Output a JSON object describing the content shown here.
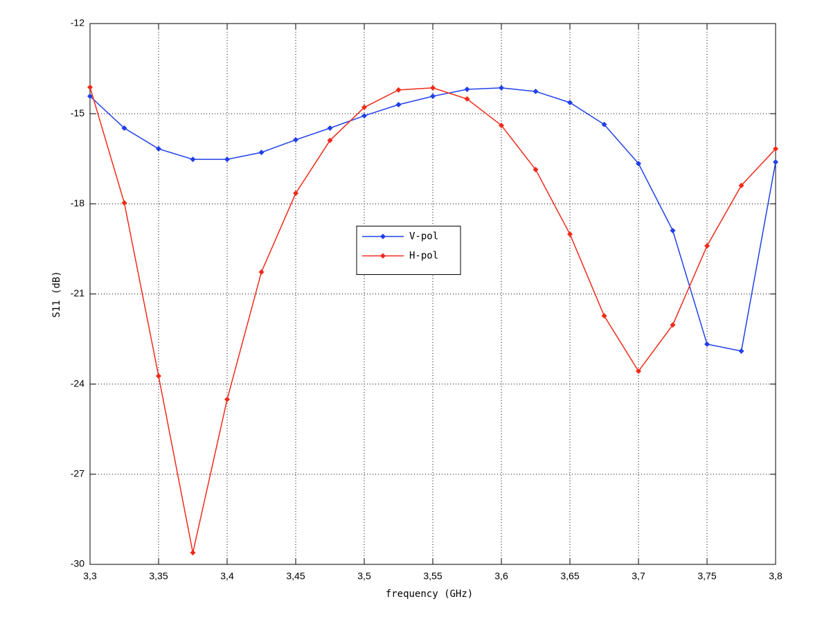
{
  "chart_data": {
    "type": "line",
    "xlabel": "frequency (GHz)",
    "ylabel": "S11 (dB)",
    "x": [
      3.3,
      3.325,
      3.35,
      3.375,
      3.4,
      3.425,
      3.45,
      3.475,
      3.5,
      3.525,
      3.55,
      3.575,
      3.6,
      3.625,
      3.65,
      3.675,
      3.7,
      3.725,
      3.75,
      3.775,
      3.8
    ],
    "series": [
      {
        "name": "V-pol",
        "color": "#1f3fe8",
        "values": [
          -14.42,
          -15.48,
          -16.17,
          -16.52,
          -16.52,
          -16.29,
          -15.87,
          -15.48,
          -15.07,
          -14.7,
          -14.42,
          -14.19,
          -14.14,
          -14.26,
          -14.63,
          -15.36,
          -16.66,
          -18.89,
          -22.67,
          -22.9,
          -16.61
        ]
      },
      {
        "name": "H-pol",
        "color": "#f02a1a",
        "values": [
          -14.12,
          -17.97,
          -23.73,
          -29.61,
          -24.51,
          -20.27,
          -17.65,
          -15.89,
          -14.79,
          -14.21,
          -14.14,
          -14.51,
          -15.39,
          -16.86,
          -19.01,
          -21.73,
          -23.57,
          -22.03,
          -19.4,
          -17.39,
          -16.17
        ]
      }
    ],
    "xlim": [
      3.3,
      3.8
    ],
    "xticks": [
      {
        "value": 3.3,
        "label": "3,3"
      },
      {
        "value": 3.35,
        "label": "3,35"
      },
      {
        "value": 3.4,
        "label": "3,4"
      },
      {
        "value": 3.45,
        "label": "3,45"
      },
      {
        "value": 3.5,
        "label": "3,5"
      },
      {
        "value": 3.55,
        "label": "3,55"
      },
      {
        "value": 3.6,
        "label": "3,6"
      },
      {
        "value": 3.65,
        "label": "3,65"
      },
      {
        "value": 3.7,
        "label": "3,7"
      },
      {
        "value": 3.75,
        "label": "3,75"
      },
      {
        "value": 3.8,
        "label": "3,8"
      }
    ],
    "ylim": [
      -30,
      -12
    ],
    "yticks": [
      -30,
      -27,
      -24,
      -21,
      -18,
      -15,
      -12
    ],
    "grid": true,
    "legend": "center"
  }
}
